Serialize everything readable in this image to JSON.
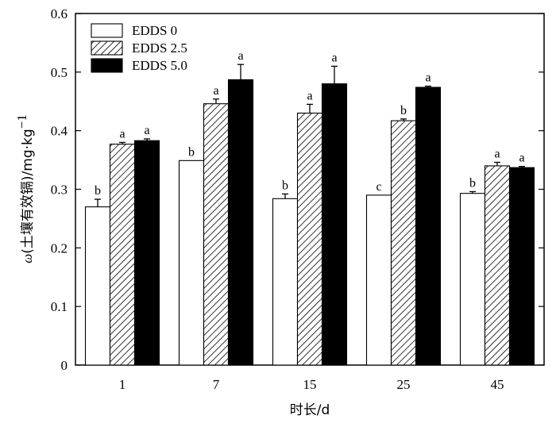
{
  "chart_data": {
    "type": "bar",
    "xlabel": "时长/d",
    "ylabel": {
      "symbol": "ω",
      "text": "(土壤有效镉)/mg·kg",
      "superscript": "−1"
    },
    "ylim": [
      0,
      0.6
    ],
    "yticks": [
      "0",
      "0.1",
      "0.2",
      "0.3",
      "0.4",
      "0.5",
      "0.6"
    ],
    "categories": [
      "1",
      "7",
      "15",
      "25",
      "45"
    ],
    "series": [
      {
        "name": "EDDS 0",
        "fill": "#ffffff",
        "pattern": "none",
        "values": [
          0.27,
          0.349,
          0.284,
          0.29,
          0.293
        ],
        "errors": [
          0.013,
          0.0,
          0.008,
          0.0,
          0.003
        ],
        "letters": [
          "b",
          "b",
          "b",
          "c",
          "b"
        ]
      },
      {
        "name": "EDDS 2.5",
        "fill": "#ffffff",
        "pattern": "hatch",
        "values": [
          0.377,
          0.446,
          0.43,
          0.417,
          0.34
        ],
        "errors": [
          0.003,
          0.008,
          0.015,
          0.003,
          0.006
        ],
        "letters": [
          "a",
          "a",
          "a",
          "b",
          "a"
        ]
      },
      {
        "name": "EDDS 5.0",
        "fill": "#000000",
        "pattern": "solid",
        "values": [
          0.383,
          0.487,
          0.48,
          0.474,
          0.337
        ],
        "errors": [
          0.003,
          0.026,
          0.03,
          0.002,
          0.002
        ],
        "letters": [
          "a",
          "a",
          "a",
          "a",
          "a"
        ]
      }
    ],
    "legend_position": "top-left",
    "grid": false
  }
}
